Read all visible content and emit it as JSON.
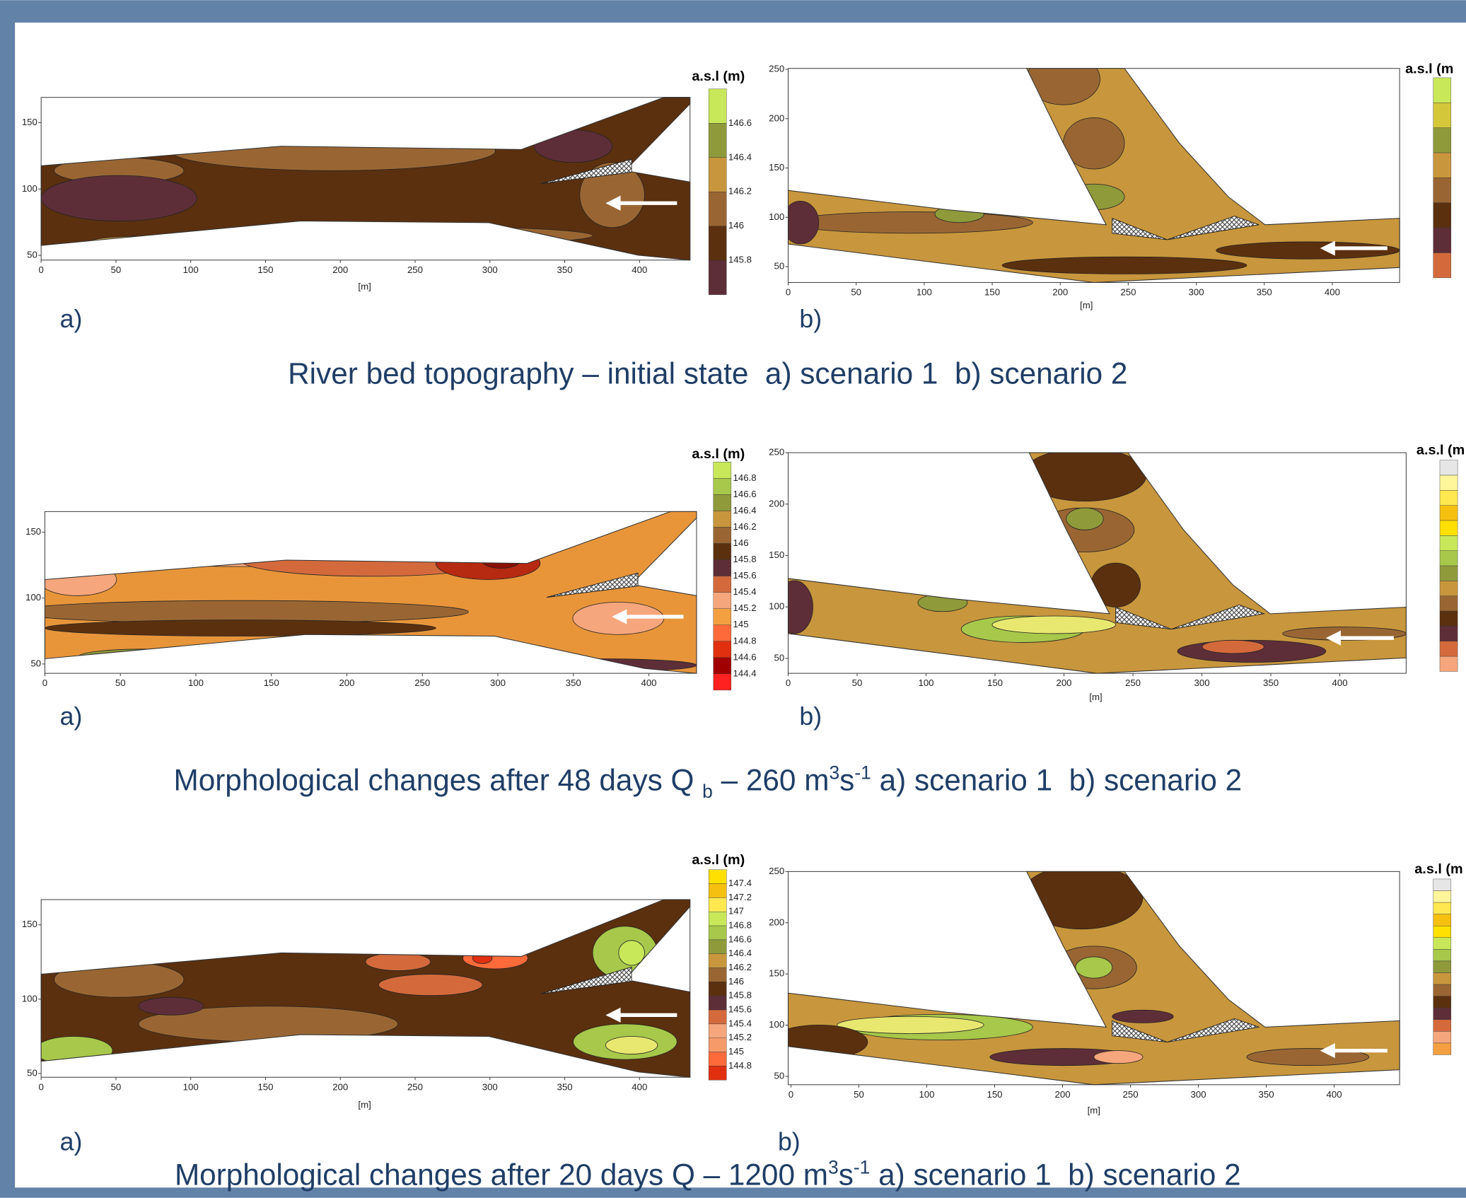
{
  "rows": [
    {
      "caption": [
        "River bed topography – initial state  a) scenario 1  b) scenario 2"
      ],
      "panels": [
        {
          "label": "a)",
          "unit": "[m]",
          "xticks": [
            0,
            50,
            100,
            150,
            200,
            250,
            300,
            350,
            400
          ],
          "yticks": [
            150,
            100,
            50
          ],
          "legend_title": "a.s.l (m)",
          "legend_ticks": [
            146.6,
            146.4,
            146.2,
            146,
            145.8
          ]
        },
        {
          "label": "b)",
          "unit": "[m]",
          "xticks": [
            0,
            50,
            100,
            150,
            200,
            250,
            300,
            350,
            400
          ],
          "yticks": [
            250,
            200,
            150,
            100,
            50
          ],
          "legend_title": "a.s.l (m"
        }
      ]
    },
    {
      "caption": [
        "Morphological changes after 48 days Q ",
        "b",
        " – 260 m",
        "3",
        "s",
        "-1",
        " a) scenario 1  b) scenario 2"
      ],
      "panels": [
        {
          "label": "a)",
          "xticks": [
            0,
            50,
            100,
            150,
            200,
            250,
            300,
            350,
            400
          ],
          "yticks": [
            150,
            100,
            50
          ],
          "legend_title": "a.s.l (m)",
          "legend_ticks": [
            146.8,
            146.6,
            146.4,
            146.2,
            146,
            145.8,
            145.6,
            145.4,
            145.2,
            145,
            144.8,
            144.6,
            144.4
          ]
        },
        {
          "label": "b)",
          "unit": "[m]",
          "xticks": [
            0,
            50,
            100,
            150,
            200,
            250,
            300,
            350,
            400
          ],
          "yticks": [
            250,
            200,
            150,
            100,
            50
          ],
          "legend_title": "a.s.l (m"
        }
      ]
    },
    {
      "caption": [
        "Morphological changes after 20 days Q – 1200 m",
        "3",
        "s",
        "-1",
        " a) scenario 1  b) scenario 2"
      ],
      "panels": [
        {
          "label": "a)",
          "unit": "[m]",
          "xticks": [
            0,
            50,
            100,
            150,
            200,
            250,
            300,
            350,
            400
          ],
          "yticks": [
            150,
            100,
            50
          ],
          "legend_title": "a.s.l (m)",
          "legend_ticks": [
            147.4,
            147.2,
            147,
            146.8,
            146.6,
            146.4,
            146.2,
            146,
            145.8,
            145.6,
            145.4,
            145.2,
            145,
            144.8
          ]
        },
        {
          "label": "b)",
          "unit": "[m]",
          "xticks": [
            0,
            50,
            100,
            150,
            200,
            250,
            300,
            350,
            400
          ],
          "yticks": [
            250,
            200,
            150,
            100,
            50
          ],
          "legend_title": "a.s.l (m"
        }
      ]
    }
  ]
}
